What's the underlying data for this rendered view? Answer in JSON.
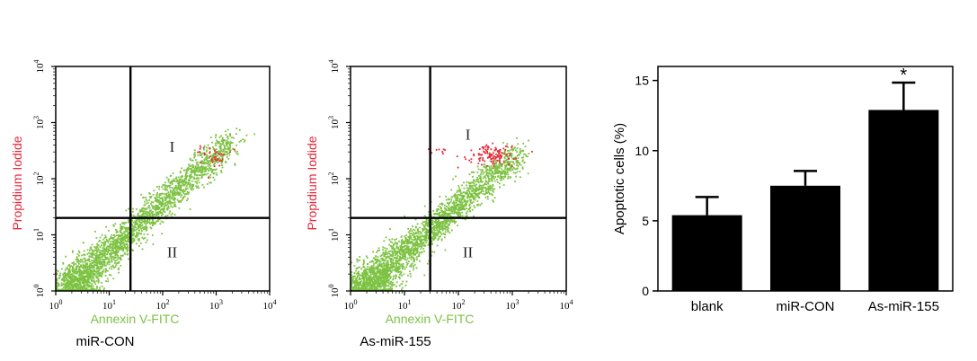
{
  "chart_data": [
    {
      "type": "scatter",
      "xlabel": "Annexin V-FITC",
      "ylabel": "Propidium Iodide",
      "caption": "miR-CON",
      "x_scale": "log",
      "y_scale": "log",
      "xlim": [
        1,
        10000
      ],
      "ylim": [
        1,
        10000
      ],
      "x_ticks": [
        {
          "base": "10",
          "exp": "0"
        },
        {
          "base": "10",
          "exp": "1"
        },
        {
          "base": "10",
          "exp": "2"
        },
        {
          "base": "10",
          "exp": "3"
        },
        {
          "base": "10",
          "exp": "4"
        }
      ],
      "y_ticks": [
        {
          "base": "10",
          "exp": "0"
        },
        {
          "base": "10",
          "exp": "1"
        },
        {
          "base": "10",
          "exp": "2"
        },
        {
          "base": "10",
          "exp": "3"
        },
        {
          "base": "10",
          "exp": "4"
        }
      ],
      "gate": {
        "x": 25,
        "y": 20
      },
      "quadrant_labels": [
        {
          "text": "I",
          "x": 150,
          "y": 300
        },
        {
          "text": "II",
          "x": 150,
          "y": 4
        }
      ],
      "populations": [
        {
          "color": "#7dc242",
          "shape": "diagonal",
          "log_x_range": [
            0.25,
            3.3
          ],
          "log_y_range": [
            0.05,
            2.7
          ],
          "count": 2600
        },
        {
          "color": "#e8283a",
          "shape": "cluster",
          "center": [
            900,
            250
          ],
          "spread": [
            0.18,
            0.12
          ],
          "count": 35
        }
      ],
      "colors": {
        "axis_label": "#7dc242",
        "y_label": "#e8283a",
        "caption": "#000000"
      }
    },
    {
      "type": "scatter",
      "xlabel": "Annexin V-FITC",
      "ylabel": "Propidium Iodide",
      "caption": "As-miR-155",
      "x_scale": "log",
      "y_scale": "log",
      "xlim": [
        1,
        10000
      ],
      "ylim": [
        1,
        10000
      ],
      "x_ticks": [
        {
          "base": "10",
          "exp": "0"
        },
        {
          "base": "10",
          "exp": "1"
        },
        {
          "base": "10",
          "exp": "2"
        },
        {
          "base": "10",
          "exp": "3"
        },
        {
          "base": "10",
          "exp": "4"
        }
      ],
      "y_ticks": [
        {
          "base": "10",
          "exp": "0"
        },
        {
          "base": "10",
          "exp": "1"
        },
        {
          "base": "10",
          "exp": "2"
        },
        {
          "base": "10",
          "exp": "3"
        },
        {
          "base": "10",
          "exp": "4"
        }
      ],
      "gate": {
        "x": 30,
        "y": 20
      },
      "quadrant_labels": [
        {
          "text": "I",
          "x": 150,
          "y": 500
        },
        {
          "text": "II",
          "x": 150,
          "y": 4
        }
      ],
      "populations": [
        {
          "color": "#7dc242",
          "shape": "diagonal",
          "log_x_range": [
            0.25,
            3.1
          ],
          "log_y_range": [
            0.05,
            2.45
          ],
          "count": 2600
        },
        {
          "color": "#e8283a",
          "shape": "cluster",
          "center": [
            420,
            260
          ],
          "spread": [
            0.22,
            0.1
          ],
          "count": 120
        },
        {
          "color": "#e8283a",
          "shape": "cluster",
          "center": [
            40,
            320
          ],
          "spread": [
            0.12,
            0.03
          ],
          "count": 8
        }
      ],
      "colors": {
        "axis_label": "#7dc242",
        "y_label": "#e8283a",
        "caption": "#000000"
      }
    },
    {
      "type": "bar",
      "categories": [
        "blank",
        "miR-CON",
        "As-miR-155"
      ],
      "values": [
        5.4,
        7.5,
        12.9
      ],
      "errors": [
        1.3,
        1.05,
        1.95
      ],
      "ylabel": "Apoptotic cells (%)",
      "ylim": [
        0,
        16
      ],
      "y_ticks": [
        "0",
        "5",
        "10",
        "15"
      ],
      "annotations": [
        {
          "category": "As-miR-155",
          "text": "*"
        }
      ],
      "colors": {
        "bar": "#000000"
      }
    }
  ]
}
